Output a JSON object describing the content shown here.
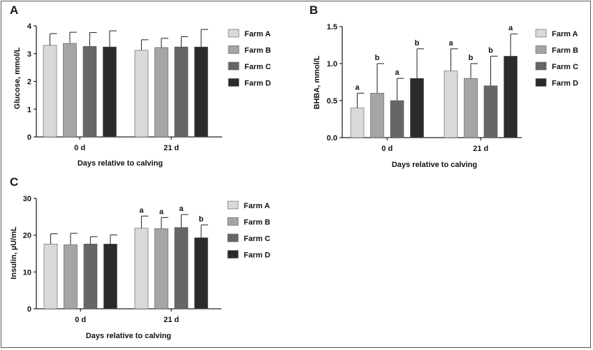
{
  "legend_colors": [
    "#d9d9d9",
    "#a5a5a5",
    "#666666",
    "#2b2b2b"
  ],
  "chart_data": [
    {
      "panel": "A",
      "type": "bar",
      "categories": [
        "0 d",
        "21 d"
      ],
      "xlabel": "Days relative to calving",
      "ylabel": "Glucose, mmol/L",
      "ylim": [
        0,
        4
      ],
      "yticks": [
        "0",
        "1",
        "2",
        "3",
        "4"
      ],
      "legend_position": "right",
      "series": [
        {
          "name": "Farm A",
          "values": [
            3.3,
            3.12
          ],
          "errors": [
            0.42,
            0.38
          ],
          "sig": [
            "",
            ""
          ]
        },
        {
          "name": "Farm B",
          "values": [
            3.37,
            3.22
          ],
          "errors": [
            0.4,
            0.33
          ],
          "sig": [
            "",
            ""
          ]
        },
        {
          "name": "Farm C",
          "values": [
            3.26,
            3.24
          ],
          "errors": [
            0.5,
            0.37
          ],
          "sig": [
            "",
            ""
          ]
        },
        {
          "name": "Farm D",
          "values": [
            3.24,
            3.24
          ],
          "errors": [
            0.58,
            0.63
          ],
          "sig": [
            "",
            ""
          ]
        }
      ]
    },
    {
      "panel": "B",
      "type": "bar",
      "categories": [
        "0 d",
        "21 d"
      ],
      "xlabel": "Days relative to calving",
      "ylabel": "BHBA, mmol/L",
      "ylim": [
        0,
        1.5
      ],
      "yticks": [
        "0.0",
        "0.5",
        "1.0",
        "1.5"
      ],
      "legend_position": "right",
      "series": [
        {
          "name": "Farm A",
          "values": [
            0.4,
            0.9
          ],
          "errors": [
            0.2,
            0.3
          ],
          "sig": [
            "a",
            "a"
          ]
        },
        {
          "name": "Farm B",
          "values": [
            0.6,
            0.8
          ],
          "errors": [
            0.4,
            0.2
          ],
          "sig": [
            "b",
            "b"
          ]
        },
        {
          "name": "Farm C",
          "values": [
            0.5,
            0.7
          ],
          "errors": [
            0.3,
            0.4
          ],
          "sig": [
            "a",
            "b"
          ]
        },
        {
          "name": "Farm D",
          "values": [
            0.8,
            1.1
          ],
          "errors": [
            0.4,
            0.3
          ],
          "sig": [
            "b",
            "a"
          ]
        }
      ]
    },
    {
      "panel": "C",
      "type": "bar",
      "categories": [
        "0 d",
        "21 d"
      ],
      "xlabel": "Days relative to calving",
      "ylabel": "Insulin, µU/mL",
      "ylim": [
        0,
        30
      ],
      "yticks": [
        "0",
        "10",
        "20",
        "30"
      ],
      "legend_position": "right",
      "series": [
        {
          "name": "Farm A",
          "values": [
            17.6,
            21.9
          ],
          "errors": [
            2.8,
            3.3
          ],
          "sig": [
            "",
            "a"
          ]
        },
        {
          "name": "Farm B",
          "values": [
            17.4,
            21.8
          ],
          "errors": [
            3.1,
            3.0
          ],
          "sig": [
            "",
            "a"
          ]
        },
        {
          "name": "Farm C",
          "values": [
            17.6,
            22.1
          ],
          "errors": [
            2.0,
            3.5
          ],
          "sig": [
            "",
            "a"
          ]
        },
        {
          "name": "Farm D",
          "values": [
            17.6,
            19.3
          ],
          "errors": [
            2.5,
            3.5
          ],
          "sig": [
            "",
            "b"
          ]
        }
      ]
    }
  ]
}
